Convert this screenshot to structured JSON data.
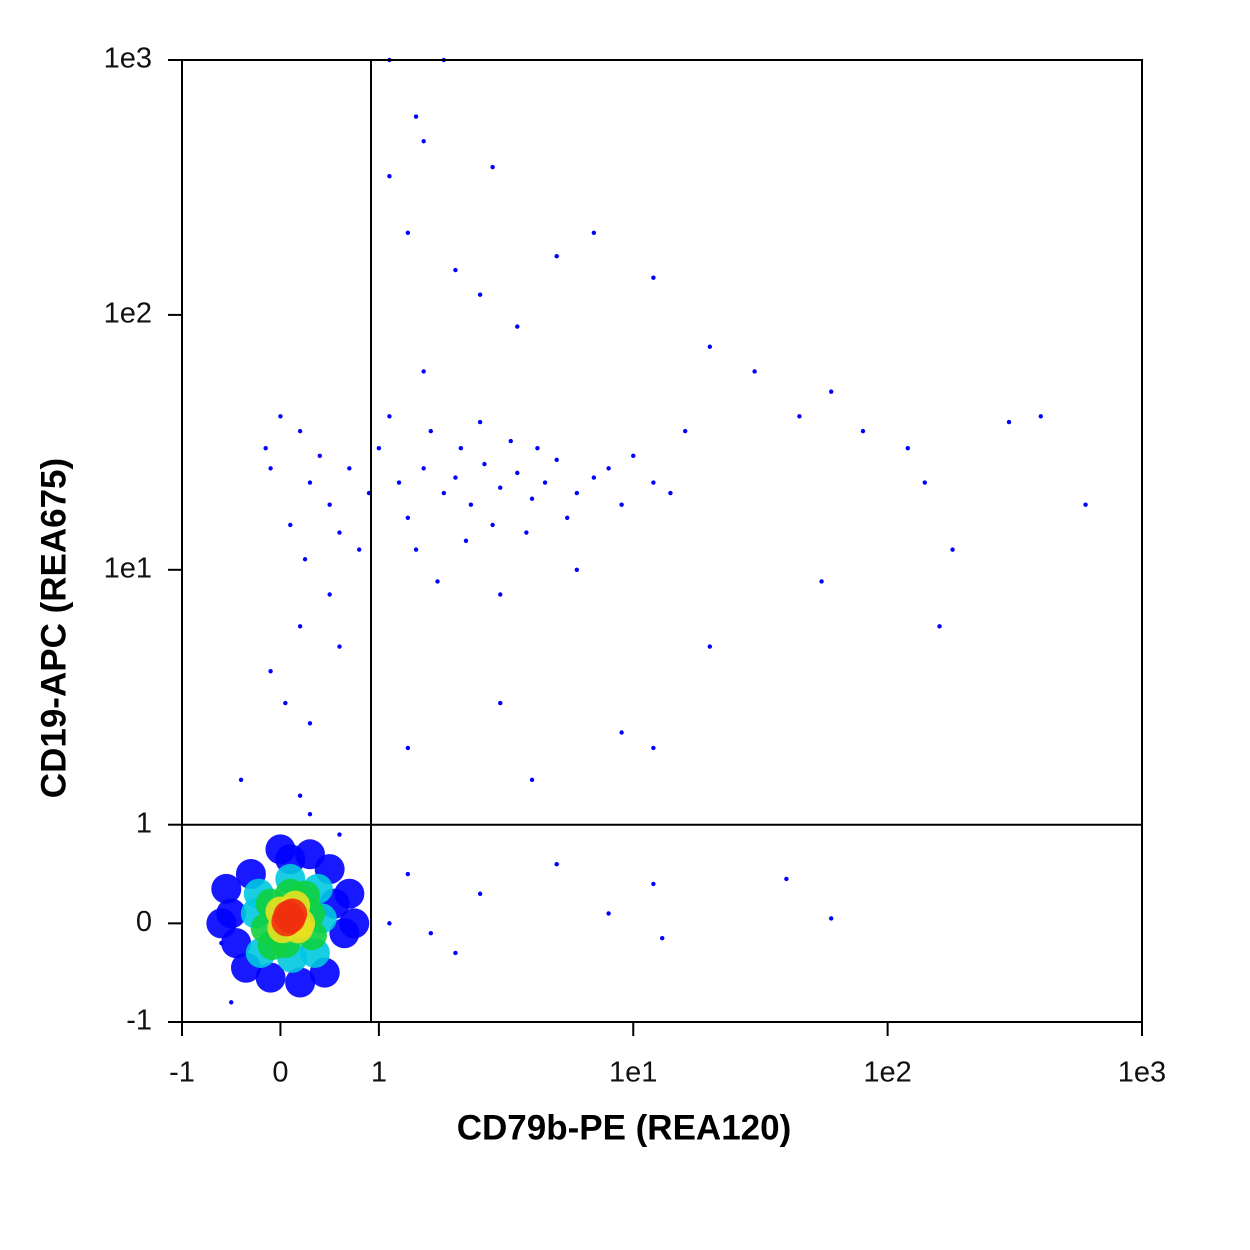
{
  "chart_data": {
    "type": "scatter",
    "scale": "biexponential",
    "x_label": "CD79b-PE (REA120)",
    "y_label": "CD19-APC (REA675)",
    "xlim": [
      -1,
      1000
    ],
    "ylim": [
      -1,
      1000
    ],
    "xticks": [
      -1,
      0,
      1,
      {
        "value": 10,
        "label": "1e1"
      },
      {
        "value": 100,
        "label": "1e2"
      },
      {
        "value": 1000,
        "label": "1e3"
      }
    ],
    "yticks": [
      -1,
      0,
      1,
      {
        "value": 10,
        "label": "1e1"
      },
      {
        "value": 100,
        "label": "1e2"
      },
      {
        "value": 1000,
        "label": "1e3"
      }
    ],
    "gates": {
      "x": 0.92,
      "y": 1
    },
    "series": [
      {
        "color": "#0000ff",
        "x": [
          1.2,
          1.5,
          1.8,
          2,
          2.3,
          2.6,
          3,
          3.5,
          4,
          4.5,
          5,
          6,
          7,
          1,
          1.3,
          2.1,
          2.8,
          3.3,
          0.9,
          0.7,
          0.5,
          0.4,
          0.3,
          0.2,
          0.6,
          0.8,
          1.1,
          1.6,
          2.5,
          4.2,
          5.5,
          8,
          9,
          10,
          12,
          14,
          16,
          1.4,
          2.2,
          3.8,
          0.1,
          -0.1,
          0,
          -0.15,
          0.25,
          1.7,
          3,
          6,
          0.5,
          0.2,
          -0.1,
          0.05,
          0.3,
          0.6,
          1.5,
          2.5,
          3.5,
          5,
          7,
          12,
          20,
          30,
          45,
          60,
          80,
          120,
          300,
          400,
          140,
          600,
          180,
          160,
          55,
          20,
          12,
          3,
          1.3,
          4,
          9,
          2,
          1.1,
          1.4,
          1.1,
          1.8,
          2.8,
          1.5,
          1.3,
          1.3,
          2.5,
          5,
          8,
          12,
          40,
          60,
          1.1,
          1.6,
          2,
          13,
          -0.5,
          -0.6,
          0.6,
          0.3,
          -0.4,
          0.2
        ],
        "y": [
          22,
          25,
          20,
          23,
          18,
          26,
          21,
          24,
          19,
          22,
          27,
          20,
          23,
          30,
          16,
          30,
          15,
          32,
          20,
          25,
          18,
          28,
          22,
          35,
          14,
          12,
          40,
          35,
          38,
          30,
          16,
          25,
          18,
          28,
          22,
          20,
          35,
          12,
          13,
          14,
          15,
          25,
          40,
          30,
          11,
          9,
          8,
          10,
          8,
          6,
          4,
          3,
          2.5,
          5,
          60,
          120,
          90,
          170,
          210,
          140,
          75,
          60,
          40,
          50,
          35,
          30,
          38,
          40,
          22,
          18,
          12,
          6,
          9,
          5,
          2,
          3,
          2,
          1.5,
          2.3,
          150,
          350,
          600,
          1000,
          1000,
          380,
          480,
          210,
          0.5,
          0.3,
          0.6,
          0.1,
          0.4,
          0.45,
          0.05,
          0,
          -0.1,
          -0.3,
          -0.15,
          -0.8,
          -0.2,
          0.9,
          1.1,
          1.5,
          1.3
        ]
      },
      {
        "x": [
          -0.5,
          -0.45,
          0.55,
          0.65,
          0.1,
          0.2,
          -0.3,
          0.5,
          -0.35,
          0.45,
          0,
          -0.1,
          0.7,
          -0.55,
          0.75,
          0.3,
          -0.6,
          -0.25,
          0.42,
          0.1,
          0.12,
          -0.22,
          0.38,
          -0.2,
          0.35,
          -0.1,
          0.3,
          0.1,
          0.05,
          -0.15,
          0.32,
          0.25,
          -0.08,
          0,
          0.2,
          0.15,
          0.02,
          0.18,
          0.08,
          0.1,
          0.12,
          0.06
        ],
        "y": [
          0.1,
          -0.2,
          0.2,
          -0.1,
          0.65,
          -0.6,
          0.5,
          0.55,
          -0.45,
          -0.5,
          0.75,
          -0.55,
          0.3,
          0.35,
          0,
          0.7,
          0,
          0.1,
          0.05,
          0.45,
          -0.35,
          0.3,
          0.35,
          -0.3,
          -0.3,
          0.2,
          0.1,
          0.3,
          -0.2,
          -0.05,
          -0.12,
          0.28,
          -0.22,
          0.12,
          0,
          0.18,
          -0.05,
          -0.05,
          0.08,
          0.05,
          0.1,
          0.02
        ],
        "colors": [
          "#0000ff",
          "#0000ff",
          "#0000ff",
          "#0000ff",
          "#0000ff",
          "#0000ff",
          "#0000ff",
          "#0000ff",
          "#0000ff",
          "#0000ff",
          "#0000ff",
          "#0000ff",
          "#0000ff",
          "#0000ff",
          "#0000ff",
          "#0000ff",
          "#0000ff",
          "#00c8e0",
          "#00c8e0",
          "#00c8e0",
          "#00c8e0",
          "#00c8e0",
          "#00c8e0",
          "#00c8e0",
          "#00c8e0",
          "#10d040",
          "#10d040",
          "#10d040",
          "#10d040",
          "#10d040",
          "#10d040",
          "#10d040",
          "#10d040",
          "#e8e020",
          "#e8e020",
          "#e8e020",
          "#e8e020",
          "#e8e020",
          "#f03010",
          "#f03010",
          "#f03010",
          "#f03010"
        ]
      }
    ]
  }
}
